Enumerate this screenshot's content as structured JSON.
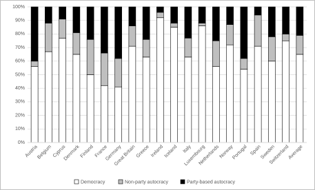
{
  "chart_data": {
    "type": "stacked_bar",
    "categories": [
      "Austria",
      "Belgium",
      "Cyprus",
      "Denmark",
      "Finland",
      "France",
      "Germany",
      "Great Britain",
      "Greece",
      "Ireland",
      "Iceland",
      "Italy",
      "Luxembourg",
      "Netherlands",
      "Norway",
      "Portugal",
      "Spain",
      "Sweden",
      "Switzerland",
      "Average"
    ],
    "series": [
      {
        "name": "Democracy",
        "color": "#ffffff",
        "values": [
          56,
          67,
          77,
          65,
          50,
          42,
          41,
          71,
          63,
          92,
          85,
          63,
          86,
          56,
          72,
          54,
          71,
          60,
          75,
          65
        ]
      },
      {
        "name": "Non-party autocracy",
        "color": "#bfbfbf",
        "values": [
          4,
          21,
          14,
          16,
          26,
          24,
          21,
          15,
          13,
          4,
          3,
          14,
          2,
          19,
          15,
          8,
          23,
          18,
          5,
          14
        ]
      },
      {
        "name": "Party-based autocracy",
        "color": "#000000",
        "values": [
          40,
          12,
          9,
          19,
          24,
          34,
          38,
          14,
          24,
          4,
          12,
          23,
          12,
          25,
          13,
          38,
          6,
          22,
          20,
          21
        ]
      }
    ],
    "ylim": [
      0,
      100
    ],
    "yticks": [
      {
        "value": 0,
        "label": "0%"
      },
      {
        "value": 10,
        "label": "10%"
      },
      {
        "value": 20,
        "label": "20%"
      },
      {
        "value": 30,
        "label": "30%"
      },
      {
        "value": 40,
        "label": "40%"
      },
      {
        "value": 50,
        "label": "50%"
      },
      {
        "value": 60,
        "label": "60%"
      },
      {
        "value": 70,
        "label": "70%"
      },
      {
        "value": 80,
        "label": "80%"
      },
      {
        "value": 90,
        "label": "90%"
      },
      {
        "value": 100,
        "label": "100%"
      }
    ],
    "grid": true
  }
}
